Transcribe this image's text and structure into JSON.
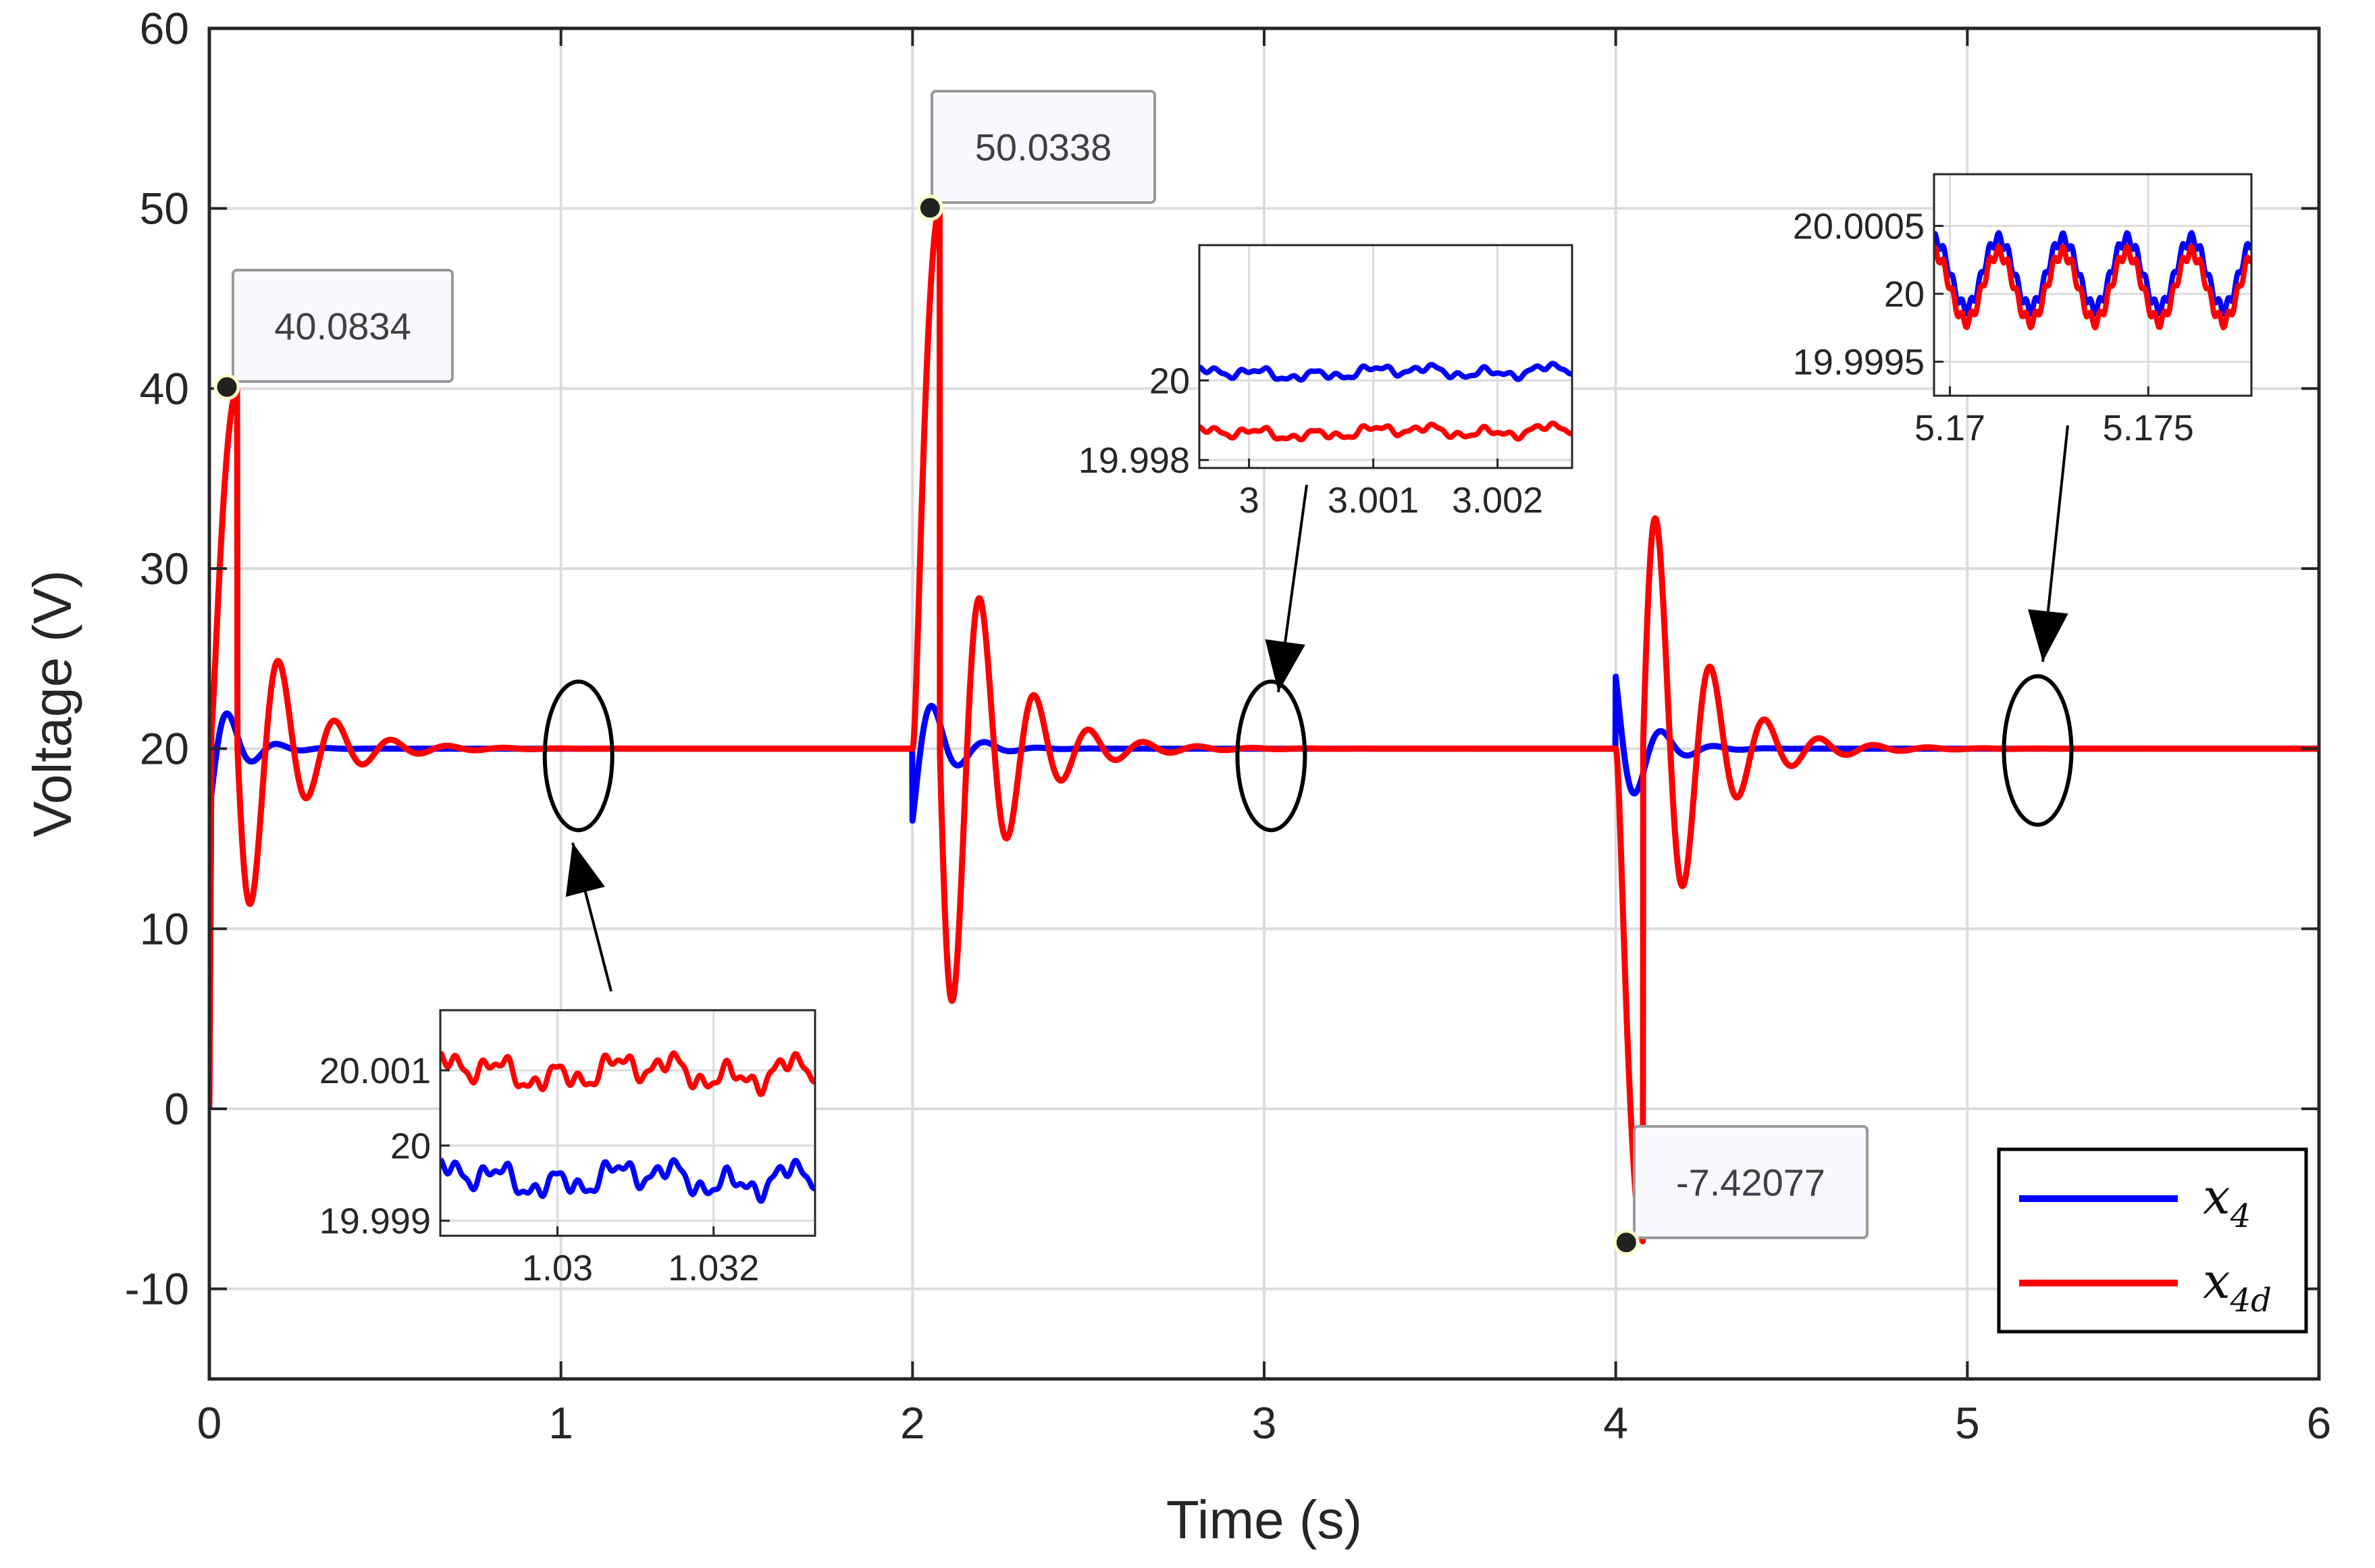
{
  "chart_data": {
    "type": "line",
    "xlabel": "Time (s)",
    "ylabel": "Voltage (V)",
    "xlim": [
      0,
      6
    ],
    "ylim": [
      -15,
      60
    ],
    "xticks": [
      "0",
      "1",
      "2",
      "3",
      "4",
      "5",
      "6"
    ],
    "yticks": [
      "-10",
      "0",
      "10",
      "20",
      "30",
      "40",
      "50",
      "60"
    ],
    "grid": true,
    "legend_position": "bottom-right",
    "series": [
      {
        "name": "x4",
        "label_base": "x",
        "label_sub": "4",
        "color": "#0000ff"
      },
      {
        "name": "x4d",
        "label_base": "x",
        "label_sub": "4d",
        "color": "#ff0000"
      }
    ],
    "datatips": [
      {
        "x": 0.05,
        "y": 40.0834,
        "label": "40.0834"
      },
      {
        "x": 2.05,
        "y": 50.0338,
        "label": "50.0338"
      },
      {
        "x": 4.03,
        "y": -7.42077,
        "label": "-7.42077"
      }
    ],
    "x4_transients": [
      {
        "t": 0,
        "start": 16.5,
        "amp": 4.2,
        "tau": 0.07,
        "period": 0.14
      },
      {
        "t": 2,
        "start": 16.0,
        "amp": 5.0,
        "tau": 0.08,
        "period": 0.15
      },
      {
        "t": 4,
        "start": 24.0,
        "amp": 5.5,
        "tau": 0.08,
        "period": 0.15
      }
    ],
    "x4d_transients": [
      {
        "t": 0,
        "amp": 20.0,
        "tau": 0.14,
        "period": 0.16,
        "peak_time": 0.05
      },
      {
        "t": 2,
        "amp": 30.0,
        "tau": 0.15,
        "period": 0.155,
        "peak_time": 0.04
      },
      {
        "t": 4,
        "amp": -27.4,
        "tau": 0.15,
        "period": 0.155,
        "peak_time": 0.035
      }
    ],
    "insets": [
      {
        "name": "inset-1030",
        "xlim": [
          1.0285,
          1.0333
        ],
        "ylim": [
          19.9988,
          20.0018
        ],
        "xticks": [
          "1.03",
          "1.032"
        ],
        "xtick_values": [
          1.03,
          1.032
        ],
        "yticks": [
          "19.999",
          "20",
          "20.001"
        ],
        "ytick_values": [
          19.999,
          20.0,
          20.001
        ],
        "x4_level": 19.99956,
        "x4d_level": 20.00098,
        "ripple": 0.00025,
        "zoom_center": [
          1.05,
          19.6
        ]
      },
      {
        "name": "inset-3000",
        "xlim": [
          2.9996,
          3.0026
        ],
        "ylim": [
          19.9978,
          20.0034
        ],
        "xticks": [
          "3",
          "3.001",
          "3.002"
        ],
        "xtick_values": [
          3.0,
          3.001,
          3.002
        ],
        "yticks": [
          "19.998",
          "20"
        ],
        "ytick_values": [
          19.998,
          20.0
        ],
        "x4_level": 20.00015,
        "x4d_level": 19.99865,
        "ripple": 0.00018,
        "zoom_center": [
          3.02,
          19.6
        ]
      },
      {
        "name": "inset-5170",
        "xlim": [
          5.1696,
          5.1776
        ],
        "ylim": [
          19.99925,
          20.00088
        ],
        "xticks": [
          "5.17",
          "5.175"
        ],
        "xtick_values": [
          5.17,
          5.175
        ],
        "yticks": [
          "19.9995",
          "20",
          "20.0005"
        ],
        "ytick_values": [
          19.9995,
          20.0,
          20.0005
        ],
        "x4_level": 20.00015,
        "x4d_level": 20.00005,
        "ripple": 0.0003,
        "zoom_center": [
          5.2,
          19.9
        ]
      }
    ]
  }
}
